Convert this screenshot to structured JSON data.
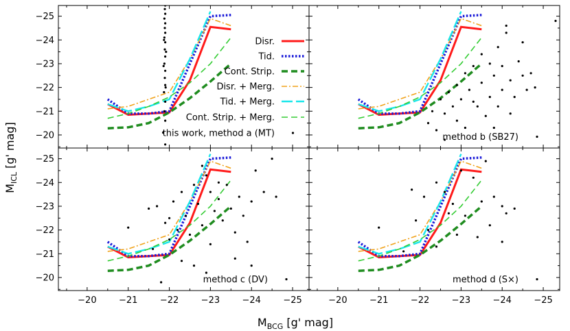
{
  "chart_data": {
    "type": "scatter",
    "xlabel": "M",
    "xlabel_sub": "BCG",
    "xlabel_unit": " [g' mag]",
    "ylabel": "M",
    "ylabel_sub": "ICL",
    "ylabel_unit": " [g' mag]",
    "xlim": [
      -19.3,
      -25.4
    ],
    "ylim": [
      -19.45,
      -25.45
    ],
    "xticks": [
      -20,
      -21,
      -22,
      -23,
      -24,
      -25
    ],
    "xtick_labels": [
      "−20",
      "−21",
      "−22",
      "−23",
      "−24",
      "−25"
    ],
    "yticks": [
      -20,
      -21,
      -22,
      -23,
      -24,
      -25
    ],
    "ytick_labels": [
      "−20",
      "−21",
      "−22",
      "−23",
      "−24",
      "−25"
    ],
    "legend_location": "top-right of panel a",
    "models": [
      {
        "name": "Disr.",
        "color": "#ff1a1a",
        "style": "solid",
        "x": [
          -20.5,
          -21.0,
          -22.0,
          -22.5,
          -23.0,
          -23.5
        ],
        "y": [
          -21.3,
          -20.85,
          -20.95,
          -22.3,
          -24.55,
          -24.45
        ]
      },
      {
        "name": "Tid.",
        "color": "#1a1ad8",
        "style": "dotted",
        "x": [
          -20.5,
          -21.0,
          -21.5,
          -22.0,
          -22.5,
          -23.0,
          -23.5
        ],
        "y": [
          -21.5,
          -20.9,
          -20.9,
          -21.0,
          -23.0,
          -25.0,
          -25.05
        ]
      },
      {
        "name": "Cont. Strip.",
        "color": "#1f8c1f",
        "style": "dashed",
        "x": [
          -20.5,
          -21.0,
          -21.5,
          -22.0,
          -22.5,
          -23.0,
          -23.5
        ],
        "y": [
          -20.28,
          -20.32,
          -20.5,
          -20.95,
          -21.55,
          -22.25,
          -23.0
        ]
      },
      {
        "name": "Disr. + Merg.",
        "color": "#f0a21a",
        "style": "dashdot",
        "x": [
          -20.5,
          -21.0,
          -21.5,
          -22.0,
          -22.5,
          -23.0,
          -23.5
        ],
        "y": [
          -21.1,
          -21.2,
          -21.5,
          -21.8,
          -23.2,
          -24.9,
          -24.6
        ]
      },
      {
        "name": "Tid. + Merg.",
        "color": "#19e6ea",
        "style": "longdash",
        "x": [
          -20.5,
          -21.0,
          -21.5,
          -22.0,
          -22.5,
          -23.0
        ],
        "y": [
          -21.3,
          -21.0,
          -21.2,
          -21.5,
          -23.2,
          -25.2
        ]
      },
      {
        "name": "Cont. Strip. + Merg.",
        "color": "#33cc33",
        "style": "dashed",
        "x": [
          -20.5,
          -21.0,
          -21.5,
          -22.0,
          -22.5,
          -23.0,
          -23.5
        ],
        "y": [
          -20.7,
          -20.9,
          -21.2,
          -21.6,
          -22.2,
          -23.0,
          -24.1
        ]
      }
    ],
    "observations_legend": "this work, method a (MT)",
    "panels": [
      {
        "id": "a",
        "label": "method a (MT)",
        "show_label": false,
        "points": [
          [
            -21.9,
            -19.6
          ],
          [
            -21.85,
            -20.1
          ],
          [
            -21.9,
            -20.6
          ],
          [
            -21.88,
            -21.0
          ],
          [
            -21.9,
            -21.4
          ],
          [
            -21.87,
            -21.8
          ],
          [
            -21.9,
            -22.1
          ],
          [
            -21.89,
            -22.4
          ],
          [
            -21.9,
            -22.7
          ],
          [
            -21.88,
            -23.0
          ],
          [
            -21.9,
            -23.3
          ],
          [
            -21.89,
            -23.6
          ],
          [
            -21.9,
            -23.9
          ],
          [
            -21.88,
            -24.1
          ],
          [
            -21.9,
            -24.3
          ],
          [
            -21.89,
            -24.5
          ],
          [
            -21.9,
            -24.7
          ],
          [
            -21.88,
            -24.9
          ],
          [
            -21.9,
            -25.1
          ],
          [
            -21.89,
            -25.3
          ],
          [
            -21.9,
            -25.45
          ],
          [
            -21.86,
            -22.9
          ],
          [
            -21.92,
            -23.5
          ],
          [
            -21.91,
            -22.0
          ],
          [
            -21.87,
            -24.0
          ]
        ]
      },
      {
        "id": "b",
        "label": "method b (SB27)",
        "show_label": true,
        "points": [
          [
            -22.2,
            -20.5
          ],
          [
            -22.3,
            -21.0
          ],
          [
            -22.4,
            -20.2
          ],
          [
            -22.5,
            -21.5
          ],
          [
            -22.6,
            -20.9
          ],
          [
            -22.7,
            -21.8
          ],
          [
            -22.8,
            -21.2
          ],
          [
            -22.9,
            -20.6
          ],
          [
            -22.9,
            -22.1
          ],
          [
            -23.0,
            -21.5
          ],
          [
            -23.1,
            -22.6
          ],
          [
            -23.1,
            -20.3
          ],
          [
            -23.2,
            -21.9
          ],
          [
            -23.3,
            -22.9
          ],
          [
            -23.4,
            -21.2
          ],
          [
            -23.5,
            -23.4
          ],
          [
            -23.5,
            -22.2
          ],
          [
            -23.6,
            -20.8
          ],
          [
            -23.7,
            -23.0
          ],
          [
            -23.7,
            -21.6
          ],
          [
            -23.8,
            -22.5
          ],
          [
            -23.9,
            -23.7
          ],
          [
            -24.0,
            -21.9
          ],
          [
            -24.0,
            -22.9
          ],
          [
            -24.1,
            -24.3
          ],
          [
            -24.2,
            -22.3
          ],
          [
            -24.3,
            -21.6
          ],
          [
            -24.4,
            -23.1
          ],
          [
            -24.5,
            -22.5
          ],
          [
            -24.6,
            -21.9
          ],
          [
            -25.3,
            -24.8
          ],
          [
            -22.6,
            -19.8
          ],
          [
            -23.8,
            -20.3
          ],
          [
            -24.2,
            -20.9
          ],
          [
            -24.8,
            -22.0
          ],
          [
            -23.3,
            -21.4
          ],
          [
            -23.9,
            -21.2
          ],
          [
            -24.1,
            -24.6
          ],
          [
            -24.5,
            -23.9
          ],
          [
            -24.7,
            -22.6
          ]
        ]
      },
      {
        "id": "c",
        "label": "method c (DV)",
        "show_label": true,
        "points": [
          [
            -21.8,
            -19.8
          ],
          [
            -22.3,
            -20.7
          ],
          [
            -22.6,
            -20.5
          ],
          [
            -22.9,
            -20.2
          ],
          [
            -21.5,
            -22.9
          ],
          [
            -21.7,
            -23.0
          ],
          [
            -21.9,
            -22.3
          ],
          [
            -22.0,
            -21.6
          ],
          [
            -22.1,
            -23.2
          ],
          [
            -22.2,
            -22.0
          ],
          [
            -22.3,
            -23.6
          ],
          [
            -22.4,
            -22.6
          ],
          [
            -22.5,
            -21.8
          ],
          [
            -22.6,
            -23.9
          ],
          [
            -22.7,
            -23.1
          ],
          [
            -22.8,
            -22.2
          ],
          [
            -22.9,
            -24.3
          ],
          [
            -23.0,
            -23.6
          ],
          [
            -23.1,
            -22.8
          ],
          [
            -23.2,
            -23.3
          ],
          [
            -23.3,
            -22.4
          ],
          [
            -23.4,
            -23.9
          ],
          [
            -23.5,
            -22.9
          ],
          [
            -23.6,
            -21.9
          ],
          [
            -23.7,
            -23.4
          ],
          [
            -23.8,
            -22.6
          ],
          [
            -23.9,
            -21.5
          ],
          [
            -24.0,
            -23.2
          ],
          [
            -24.1,
            -24.5
          ],
          [
            -24.3,
            -23.6
          ],
          [
            -24.5,
            -25.0
          ],
          [
            -24.6,
            -23.4
          ],
          [
            -21.0,
            -22.1
          ],
          [
            -22.8,
            -24.7
          ],
          [
            -23.2,
            -24.0
          ],
          [
            -23.6,
            -20.8
          ],
          [
            -24.0,
            -20.5
          ],
          [
            -22.0,
            -22.5
          ],
          [
            -23.0,
            -21.4
          ],
          [
            -21.6,
            -21.2
          ]
        ]
      },
      {
        "id": "d",
        "label": "method d (S×)",
        "show_label": true,
        "points": [
          [
            -21.0,
            -22.1
          ],
          [
            -21.8,
            -23.7
          ],
          [
            -21.9,
            -22.4
          ],
          [
            -22.1,
            -23.4
          ],
          [
            -22.2,
            -22.0
          ],
          [
            -22.4,
            -24.0
          ],
          [
            -22.6,
            -23.6
          ],
          [
            -22.7,
            -22.7
          ],
          [
            -22.8,
            -23.1
          ],
          [
            -22.9,
            -21.8
          ],
          [
            -23.0,
            -24.5
          ],
          [
            -23.1,
            -22.6
          ],
          [
            -23.3,
            -24.2
          ],
          [
            -23.4,
            -21.7
          ],
          [
            -23.5,
            -23.2
          ],
          [
            -23.6,
            -24.9
          ],
          [
            -23.7,
            -22.2
          ],
          [
            -23.8,
            -23.4
          ],
          [
            -24.0,
            -23.0
          ],
          [
            -24.1,
            -22.7
          ],
          [
            -24.3,
            -22.9
          ],
          [
            -24.0,
            -21.5
          ],
          [
            -22.4,
            -21.3
          ],
          [
            -21.6,
            -21.1
          ]
        ]
      }
    ]
  }
}
